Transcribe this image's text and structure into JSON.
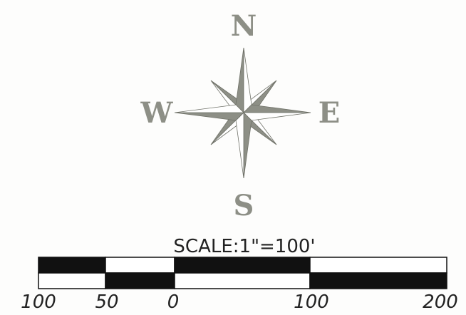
{
  "compass": {
    "north": "N",
    "south": "S",
    "east": "E",
    "west": "W",
    "color": "#8d8f86"
  },
  "scale": {
    "title": "SCALE:1\"=100'",
    "units": "feet",
    "tick_labels": [
      "100",
      "50",
      "0",
      "100",
      "200"
    ],
    "bar_colors": {
      "dark": "#111111",
      "light": "#ffffff"
    }
  }
}
